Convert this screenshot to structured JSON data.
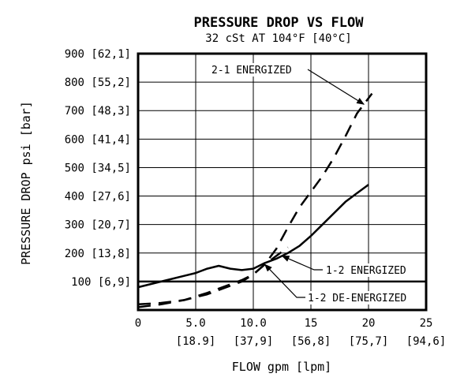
{
  "chart_data": {
    "type": "line",
    "title": "PRESSURE DROP VS FLOW",
    "subtitle": "32 cSt AT 104°F [40°C]",
    "xlabel": "FLOW gpm [lpm]",
    "ylabel": "PRESSURE DROP psi [bar]",
    "xlim": [
      0,
      25
    ],
    "ylim": [
      0,
      900
    ],
    "x_ticks": [
      {
        "value": 0,
        "label": "0",
        "sublabel": ""
      },
      {
        "value": 5,
        "label": "5.0",
        "sublabel": "[18.9]"
      },
      {
        "value": 10,
        "label": "10.0",
        "sublabel": "[37,9]"
      },
      {
        "value": 15,
        "label": "15",
        "sublabel": "[56,8]"
      },
      {
        "value": 20,
        "label": "20",
        "sublabel": "[75,7]"
      },
      {
        "value": 25,
        "label": "25",
        "sublabel": "[94,6]"
      }
    ],
    "y_ticks": [
      {
        "value": 100,
        "label": "100 [6,9]"
      },
      {
        "value": 200,
        "label": "200 [13,8]"
      },
      {
        "value": 300,
        "label": "300 [20,7]"
      },
      {
        "value": 400,
        "label": "400 [27,6]"
      },
      {
        "value": 500,
        "label": "500 [34,5]"
      },
      {
        "value": 600,
        "label": "600 [41,4]"
      },
      {
        "value": 700,
        "label": "700 [48,3]"
      },
      {
        "value": 800,
        "label": "800 [55,2]"
      },
      {
        "value": 900,
        "label": "900 [62,1]"
      }
    ],
    "grid": true,
    "reference_line": {
      "y": 100
    },
    "series": [
      {
        "name": "2-1 ENERGIZED",
        "style": "dashed",
        "x": [
          0,
          2,
          4,
          6,
          8,
          9,
          10,
          11,
          12,
          13,
          14,
          15,
          16,
          17,
          18,
          19,
          20.3
        ],
        "y": [
          10,
          20,
          35,
          60,
          90,
          105,
          125,
          160,
          215,
          290,
          360,
          415,
          470,
          535,
          610,
          690,
          760
        ]
      },
      {
        "name": "1-2 ENERGIZED",
        "style": "solid",
        "x": [
          0,
          2,
          4,
          5,
          6,
          7,
          8,
          9,
          10,
          11,
          12,
          13,
          14,
          15,
          16,
          17,
          18,
          19,
          20
        ],
        "y": [
          80,
          100,
          120,
          130,
          145,
          155,
          145,
          140,
          145,
          165,
          180,
          200,
          225,
          260,
          300,
          340,
          380,
          410,
          440
        ]
      },
      {
        "name": "1-2 DE-ENERGIZED",
        "style": "dashed",
        "x": [
          0,
          2,
          4,
          6,
          8,
          9,
          10,
          11,
          12,
          13
        ],
        "y": [
          20,
          25,
          35,
          55,
          85,
          100,
          125,
          160,
          190,
          220
        ]
      }
    ],
    "annotations": [
      {
        "text": "2-1 ENERGIZED",
        "series": 0,
        "at_x": 19.6
      },
      {
        "text": "1-2 ENERGIZED",
        "series": 1,
        "at_x": 12.5
      },
      {
        "text": "1-2 DE-ENERGIZED",
        "series": 2,
        "at_x": 11.0
      }
    ]
  }
}
